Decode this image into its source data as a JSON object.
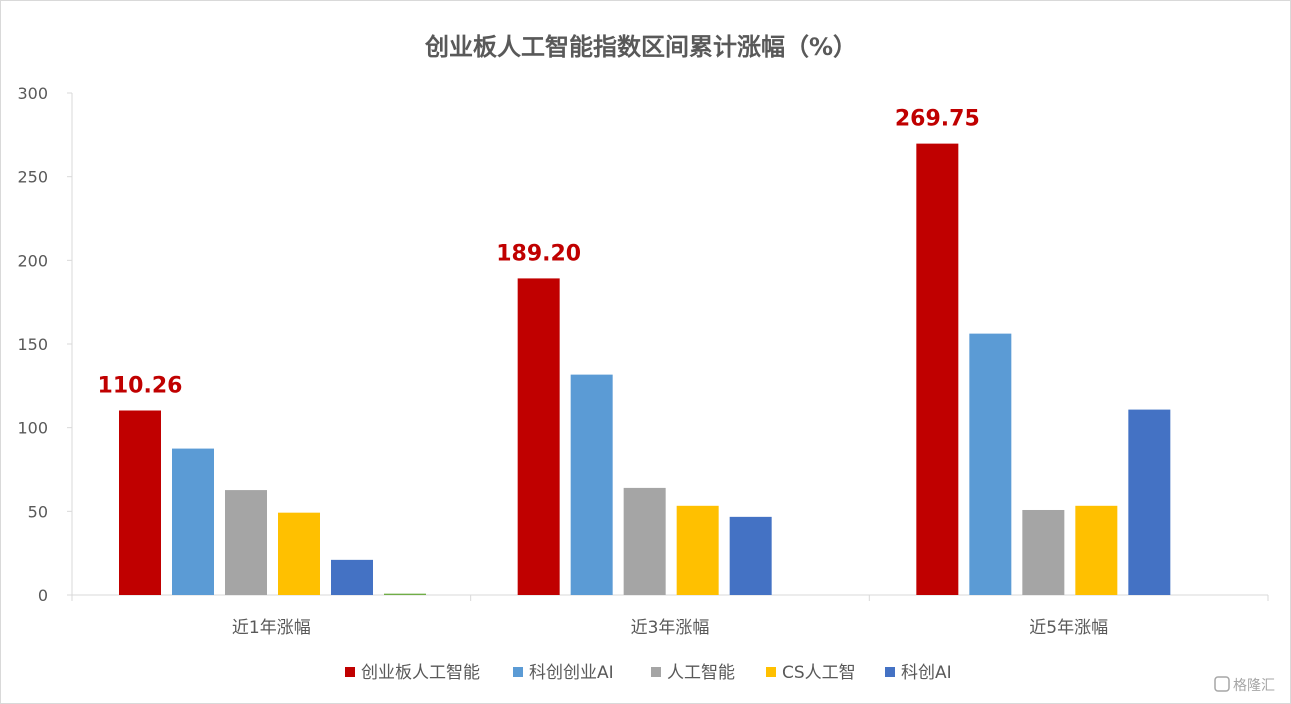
{
  "chart_data": {
    "type": "bar",
    "title": "创业板人工智能指数区间累计涨幅（%）",
    "categories": [
      "近1年涨幅",
      "近3年涨幅",
      "近5年涨幅"
    ],
    "series": [
      {
        "name": "创业板人工智能",
        "color": "#c00000",
        "values": [
          110.26,
          189.2,
          269.75
        ],
        "labels": [
          "110.26",
          "189.20",
          "269.75"
        ]
      },
      {
        "name": "科创创业AI",
        "color": "#5b9bd5",
        "values": [
          87.5,
          131.7,
          156.2
        ]
      },
      {
        "name": "人工智能",
        "color": "#a5a5a5",
        "values": [
          62.7,
          64.0,
          50.8
        ]
      },
      {
        "name": "CS人工智",
        "color": "#ffc000",
        "values": [
          49.2,
          53.3,
          53.3
        ]
      },
      {
        "name": "科创AI",
        "color": "#4472c4",
        "values": [
          21.0,
          46.7,
          110.8
        ]
      },
      {
        "name": "",
        "color": "#70ad47",
        "values": [
          0.8,
          null,
          null
        ]
      }
    ],
    "yticks": [
      "300",
      "250",
      "200",
      "150",
      "100",
      "50",
      "0"
    ],
    "ylim": [
      0,
      300
    ],
    "grid": false,
    "legend": "bottom"
  },
  "watermark": "格隆汇"
}
